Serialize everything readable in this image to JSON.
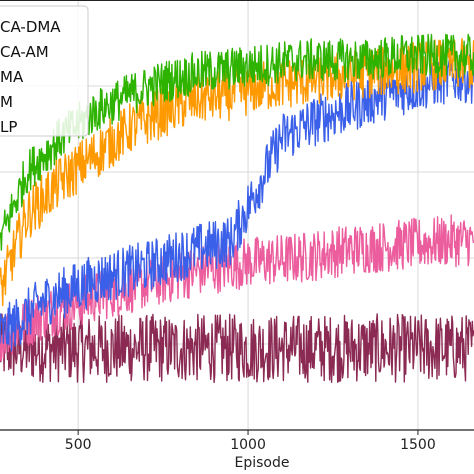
{
  "chart_data": {
    "type": "line",
    "xlabel": "Episode",
    "ylabel": "",
    "xlim": [
      270,
      1665
    ],
    "ylim": [
      0,
      100
    ],
    "x_ticks": [
      500,
      1000,
      1500
    ],
    "x_tick_labels": [
      "500",
      "1000",
      "1500"
    ],
    "grid": true,
    "legend_position": "top-left",
    "series": [
      {
        "name": "CA-DMA",
        "color": "#2db300",
        "x": [
          270,
          350,
          450,
          550,
          650,
          750,
          850,
          950,
          1050,
          1150,
          1250,
          1350,
          1450,
          1550,
          1665
        ],
        "values": [
          44,
          60,
          68,
          74,
          78,
          81,
          83,
          84,
          85,
          86,
          86,
          86,
          87,
          87,
          87
        ]
      },
      {
        "name": "CA-AM",
        "color": "#ff9900",
        "x": [
          270,
          350,
          450,
          550,
          650,
          750,
          850,
          950,
          1050,
          1150,
          1250,
          1350,
          1450,
          1550,
          1665
        ],
        "values": [
          32,
          50,
          58,
          64,
          70,
          74,
          77,
          78,
          80,
          81,
          82,
          83,
          84,
          85,
          85
        ]
      },
      {
        "name": "MA",
        "color": "#3a5fe8",
        "x": [
          270,
          400,
          550,
          700,
          850,
          950,
          1000,
          1050,
          1100,
          1200,
          1300,
          1400,
          1500,
          1600,
          1665
        ],
        "values": [
          22,
          30,
          35,
          38,
          42,
          44,
          52,
          60,
          68,
          72,
          75,
          78,
          80,
          82,
          82
        ]
      },
      {
        "name": "M",
        "color": "#ec5d9e",
        "x": [
          270,
          400,
          550,
          700,
          850,
          1000,
          1150,
          1300,
          1450,
          1600,
          1665
        ],
        "values": [
          22,
          27,
          31,
          34,
          37,
          39,
          40,
          42,
          43,
          44,
          44
        ]
      },
      {
        "name": "LP",
        "color": "#8b2a52",
        "x": [
          270,
          500,
          750,
          1000,
          1250,
          1500,
          1665
        ],
        "values": [
          19,
          19,
          19,
          19,
          19,
          19,
          19
        ]
      }
    ]
  }
}
